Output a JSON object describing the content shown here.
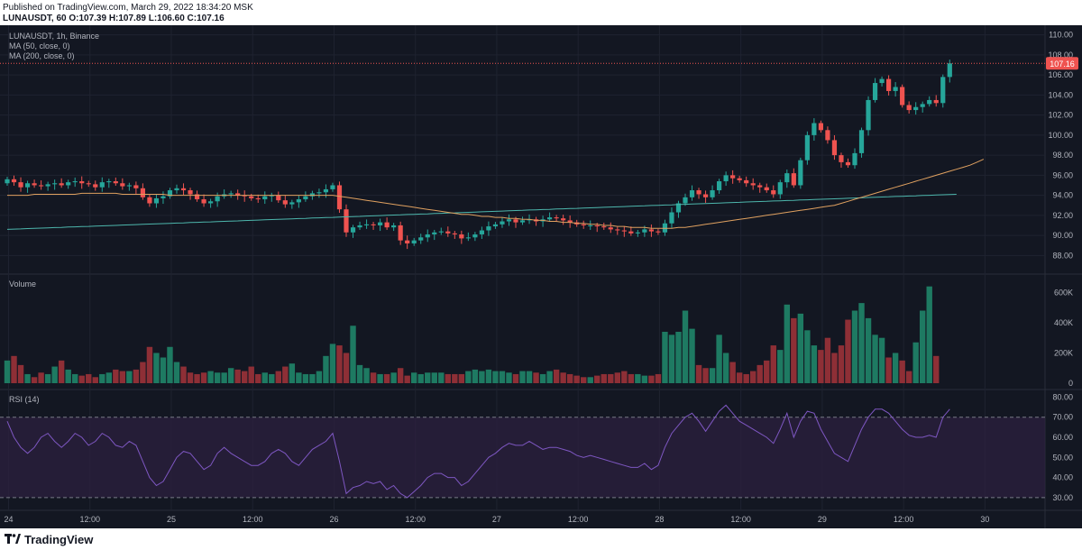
{
  "header": {
    "published": "Published on TradingView.com, March 29, 2022 18:34:20 MSK",
    "ohlc": "LUNAUSDT, 60 O:107.39 H:107.89 L:106.60 C:107.16"
  },
  "legend": {
    "symbol": "LUNAUSDT, 1h, Binance",
    "ma50": "MA (50, close, 0)",
    "ma200": "MA (200, close, 0)"
  },
  "footer": {
    "brand": "TradingView",
    "logo_icon": "tradingview-logo-icon"
  },
  "colors": {
    "background": "#131722",
    "grid": "#1f2330",
    "up": "#26a69a",
    "down": "#ef5350",
    "ma50": "#e0a160",
    "ma200": "#4db6ac",
    "rsi": "#7e57c2",
    "rsi_band": "#2a1f3d"
  },
  "chart_data": [
    {
      "type": "candlestick",
      "panel": "price",
      "last_price": 107.16,
      "ylim": [
        86.5,
        110.6
      ],
      "y_ticks": [
        "110.00",
        "108.00",
        "106.00",
        "104.00",
        "102.00",
        "100.00",
        "98.00",
        "96.00",
        "94.00",
        "92.00",
        "90.00",
        "88.00"
      ],
      "x_ticks": [
        "24",
        "12:00",
        "25",
        "12:00",
        "26",
        "12:00",
        "27",
        "12:00",
        "28",
        "12:00",
        "29",
        "12:00",
        "30"
      ],
      "x_tick_pos": [
        0.2,
        12.2,
        24.2,
        36.2,
        48.2,
        60.2,
        72.2,
        84.2,
        96.2,
        108.2,
        120.2,
        132.2,
        144.2
      ],
      "closes": [
        95.6,
        95.3,
        94.8,
        95.2,
        95.0,
        94.9,
        95.1,
        95.2,
        95.0,
        95.3,
        95.4,
        95.2,
        95.1,
        94.8,
        95.3,
        95.4,
        95.2,
        94.9,
        95.0,
        94.7,
        93.8,
        93.2,
        93.7,
        93.9,
        94.5,
        94.7,
        94.5,
        94.1,
        93.6,
        93.2,
        93.4,
        93.9,
        94.1,
        94.2,
        94.0,
        93.9,
        93.7,
        93.6,
        93.9,
        94.0,
        93.5,
        93.1,
        93.3,
        93.6,
        93.9,
        94.2,
        94.3,
        94.6,
        95.0,
        92.6,
        90.3,
        90.8,
        91.0,
        91.1,
        91.0,
        91.3,
        90.8,
        91.0,
        89.5,
        89.2,
        89.5,
        89.8,
        90.1,
        90.3,
        90.4,
        90.2,
        90.1,
        89.7,
        89.8,
        90.1,
        90.5,
        90.9,
        91.1,
        91.4,
        91.6,
        91.3,
        91.5,
        91.6,
        91.4,
        91.6,
        91.8,
        91.7,
        91.5,
        91.3,
        91.1,
        91.0,
        91.0,
        90.9,
        90.8,
        90.6,
        90.5,
        90.4,
        90.2,
        90.3,
        90.6,
        90.4,
        90.3,
        91.2,
        92.3,
        93.2,
        93.8,
        94.5,
        94.1,
        93.8,
        94.5,
        95.4,
        96.0,
        95.7,
        95.5,
        95.2,
        95.0,
        94.8,
        94.5,
        94.1,
        95.3,
        96.2,
        95.0,
        97.5,
        100.0,
        101.2,
        100.5,
        99.5,
        98.0,
        97.3,
        97.0,
        98.2,
        100.5,
        103.5,
        105.2,
        105.6,
        104.4,
        104.8,
        103.0,
        102.5,
        102.8,
        103.1,
        103.5,
        103.2,
        105.8,
        107.16
      ],
      "ma50": [
        94.0,
        94.0,
        94.0,
        94.0,
        94.1,
        94.1,
        94.1,
        94.1,
        94.1,
        94.1,
        94.1,
        94.2,
        94.2,
        94.2,
        94.2,
        94.2,
        94.2,
        94.1,
        94.1,
        94.1,
        94.1,
        94.1,
        94.1,
        94.1,
        94.0,
        94.0,
        94.0,
        94.0,
        94.0,
        94.0,
        94.0,
        94.0,
        94.0,
        94.0,
        94.0,
        94.0,
        94.0,
        94.0,
        94.0,
        94.0,
        94.0,
        94.0,
        94.0,
        94.0,
        94.0,
        94.0,
        94.0,
        94.0,
        94.0,
        93.9,
        93.8,
        93.7,
        93.6,
        93.5,
        93.4,
        93.3,
        93.2,
        93.1,
        93.0,
        92.9,
        92.8,
        92.7,
        92.6,
        92.5,
        92.4,
        92.3,
        92.2,
        92.1,
        92.1,
        92.0,
        91.9,
        91.9,
        91.8,
        91.8,
        91.7,
        91.7,
        91.6,
        91.6,
        91.5,
        91.5,
        91.4,
        91.4,
        91.3,
        91.3,
        91.2,
        91.2,
        91.1,
        91.1,
        91.0,
        91.0,
        90.9,
        90.9,
        90.8,
        90.8,
        90.8,
        90.7,
        90.7,
        90.7,
        90.7,
        90.8,
        90.8,
        90.9,
        91.0,
        91.1,
        91.2,
        91.3,
        91.4,
        91.5,
        91.6,
        91.7,
        91.8,
        91.9,
        92.0,
        92.1,
        92.2,
        92.3,
        92.4,
        92.5,
        92.6,
        92.7,
        92.8,
        92.9,
        93.0,
        93.2,
        93.4,
        93.6,
        93.8,
        94.0,
        94.2,
        94.4,
        94.6,
        94.8,
        95.0,
        95.2,
        95.4,
        95.6,
        95.8,
        96.0,
        96.2,
        96.4,
        96.6,
        96.8,
        97.0,
        97.3,
        97.6
      ],
      "ma200": [
        90.6,
        90.63,
        90.65,
        90.68,
        90.7,
        90.73,
        90.75,
        90.78,
        90.8,
        90.83,
        90.85,
        90.88,
        90.9,
        90.93,
        90.95,
        90.98,
        91.0,
        91.03,
        91.05,
        91.08,
        91.1,
        91.13,
        91.15,
        91.18,
        91.2,
        91.23,
        91.25,
        91.28,
        91.3,
        91.33,
        91.35,
        91.38,
        91.4,
        91.43,
        91.45,
        91.48,
        91.5,
        91.53,
        91.55,
        91.58,
        91.6,
        91.63,
        91.65,
        91.68,
        91.7,
        91.73,
        91.75,
        91.78,
        91.8,
        91.83,
        91.85,
        91.88,
        91.9,
        91.93,
        91.95,
        91.98,
        92.0,
        92.03,
        92.05,
        92.08,
        92.1,
        92.13,
        92.15,
        92.18,
        92.2,
        92.23,
        92.25,
        92.28,
        92.3,
        92.33,
        92.35,
        92.38,
        92.4,
        92.43,
        92.45,
        92.48,
        92.5,
        92.53,
        92.55,
        92.58,
        92.6,
        92.63,
        92.65,
        92.68,
        92.7,
        92.73,
        92.75,
        92.78,
        92.8,
        92.83,
        92.85,
        92.88,
        92.9,
        92.93,
        92.95,
        92.98,
        93.0,
        93.03,
        93.05,
        93.08,
        93.1,
        93.13,
        93.15,
        93.18,
        93.2,
        93.23,
        93.25,
        93.28,
        93.3,
        93.33,
        93.35,
        93.38,
        93.4,
        93.43,
        93.45,
        93.48,
        93.5,
        93.53,
        93.55,
        93.58,
        93.6,
        93.63,
        93.65,
        93.68,
        93.7,
        93.73,
        93.75,
        93.78,
        93.8,
        93.83,
        93.85,
        93.88,
        93.9,
        93.93,
        93.95,
        93.98,
        94.0,
        94.03,
        94.05,
        94.08,
        94.1
      ]
    },
    {
      "type": "bar",
      "panel": "volume",
      "title": "Volume",
      "ylim": [
        0,
        650
      ],
      "y_ticks": [
        "600K",
        "400K",
        "200K",
        "0"
      ],
      "values": [
        150,
        180,
        120,
        60,
        40,
        70,
        60,
        110,
        150,
        90,
        60,
        50,
        60,
        40,
        60,
        70,
        90,
        80,
        80,
        90,
        140,
        240,
        200,
        170,
        240,
        140,
        110,
        70,
        60,
        70,
        80,
        70,
        70,
        100,
        90,
        80,
        110,
        60,
        70,
        60,
        80,
        110,
        130,
        70,
        60,
        60,
        80,
        180,
        260,
        250,
        200,
        380,
        120,
        100,
        70,
        60,
        60,
        70,
        100,
        50,
        70,
        60,
        70,
        70,
        70,
        60,
        60,
        60,
        80,
        90,
        80,
        90,
        80,
        80,
        70,
        60,
        80,
        80,
        70,
        60,
        80,
        90,
        70,
        60,
        50,
        40,
        40,
        50,
        60,
        60,
        70,
        80,
        60,
        60,
        50,
        50,
        60,
        340,
        320,
        340,
        480,
        360,
        120,
        100,
        100,
        320,
        200,
        140,
        70,
        60,
        80,
        120,
        150,
        250,
        220,
        520,
        430,
        460,
        350,
        250,
        220,
        300,
        200,
        250,
        420,
        480,
        530,
        430,
        320,
        300,
        170,
        200,
        150,
        80,
        270,
        480,
        640,
        180
      ]
    },
    {
      "type": "line",
      "panel": "rsi",
      "title": "RSI (14)",
      "ylim": [
        25,
        82
      ],
      "y_ticks": [
        "80.00",
        "70.00",
        "60.00",
        "50.00",
        "40.00",
        "30.00"
      ],
      "band": [
        30,
        70
      ],
      "values": [
        68,
        60,
        55,
        52,
        55,
        60,
        62,
        58,
        55,
        58,
        62,
        60,
        56,
        58,
        62,
        60,
        56,
        55,
        58,
        56,
        48,
        40,
        36,
        38,
        44,
        50,
        53,
        52,
        48,
        44,
        46,
        52,
        55,
        52,
        50,
        48,
        46,
        46,
        48,
        52,
        54,
        52,
        48,
        46,
        50,
        54,
        56,
        58,
        62,
        48,
        32,
        35,
        36,
        38,
        37,
        38,
        34,
        36,
        32,
        30,
        33,
        36,
        40,
        42,
        42,
        40,
        40,
        36,
        38,
        42,
        46,
        50,
        52,
        55,
        57,
        56,
        56,
        58,
        56,
        54,
        55,
        55,
        54,
        53,
        51,
        50,
        51,
        50,
        49,
        48,
        47,
        46,
        45,
        45,
        47,
        44,
        46,
        55,
        62,
        66,
        70,
        72,
        68,
        63,
        68,
        73,
        76,
        72,
        68,
        66,
        64,
        62,
        60,
        57,
        64,
        72,
        60,
        68,
        73,
        72,
        64,
        58,
        52,
        50,
        48,
        56,
        64,
        70,
        74,
        74,
        72,
        68,
        64,
        61,
        60,
        60,
        61,
        60,
        70,
        74
      ]
    }
  ]
}
